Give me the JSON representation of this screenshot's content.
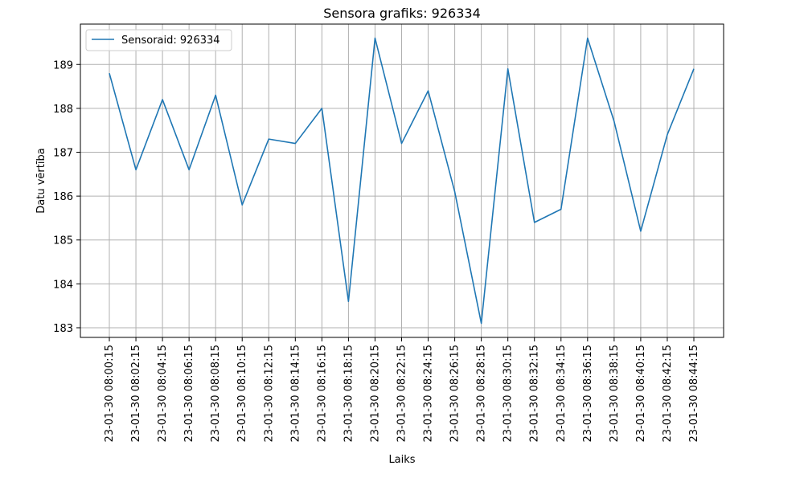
{
  "chart_data": {
    "type": "line",
    "title": "Sensora grafiks: 926334",
    "xlabel": "Laiks",
    "ylabel": "Datu vērtība",
    "x": [
      "23-01-30 08:00:15",
      "23-01-30 08:02:15",
      "23-01-30 08:04:15",
      "23-01-30 08:06:15",
      "23-01-30 08:08:15",
      "23-01-30 08:10:15",
      "23-01-30 08:12:15",
      "23-01-30 08:14:15",
      "23-01-30 08:16:15",
      "23-01-30 08:18:15",
      "23-01-30 08:20:15",
      "23-01-30 08:22:15",
      "23-01-30 08:24:15",
      "23-01-30 08:26:15",
      "23-01-30 08:28:15",
      "23-01-30 08:30:15",
      "23-01-30 08:32:15",
      "23-01-30 08:34:15",
      "23-01-30 08:36:15",
      "23-01-30 08:38:15",
      "23-01-30 08:40:15",
      "23-01-30 08:42:15",
      "23-01-30 08:44:15"
    ],
    "series": [
      {
        "name": "Sensoraid: 926334",
        "color": "#1f77b4",
        "values": [
          188.8,
          186.6,
          188.2,
          186.6,
          188.3,
          185.8,
          187.3,
          187.2,
          188.0,
          183.6,
          189.6,
          187.2,
          188.4,
          186.1,
          183.1,
          188.9,
          185.4,
          185.7,
          189.6,
          187.7,
          185.2,
          187.4,
          188.9
        ]
      }
    ],
    "yticks": [
      183,
      184,
      185,
      186,
      187,
      188,
      189
    ],
    "ylim": [
      182.78,
      189.92
    ],
    "grid": true,
    "legend_position": "upper-left"
  }
}
